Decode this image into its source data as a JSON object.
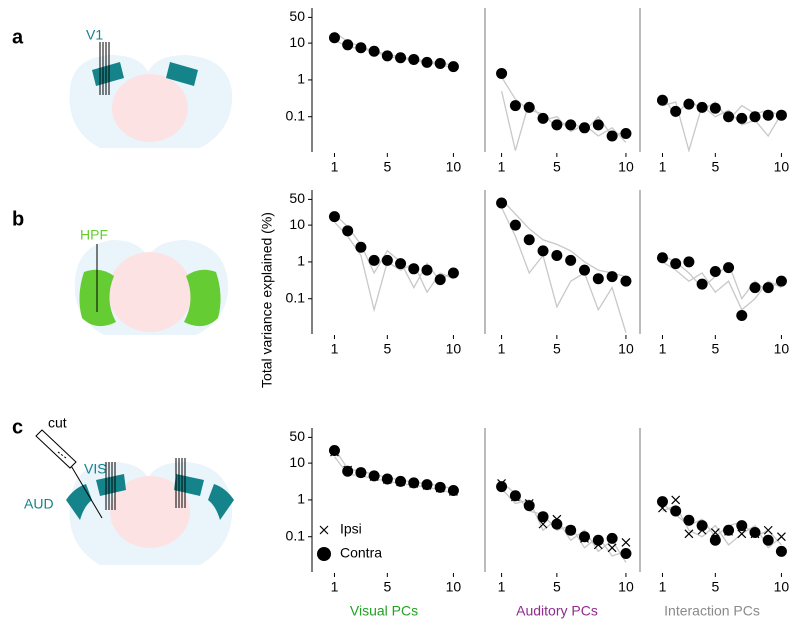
{
  "figure": {
    "panel_labels": [
      "a",
      "b",
      "c"
    ],
    "region_labels": [
      "V1",
      "HPF",
      "VIS",
      "AUD"
    ],
    "cut_label": "cut",
    "y_label": "Total variance explained (%)",
    "column_titles": [
      {
        "text": "Visual PCs",
        "color": "#22a022"
      },
      {
        "text": "Auditory PCs",
        "color": "#8e2b8e"
      },
      {
        "text": "Interaction PCs",
        "color": "#8a8a8a"
      }
    ]
  },
  "chart_data": [
    {
      "type": "scatter",
      "yscale": "log",
      "xlim": [
        -0.7,
        10.8
      ],
      "ylim": [
        0.011,
        90
      ],
      "xticks": [
        1,
        5,
        10
      ],
      "yticks": [
        0.1,
        1,
        10,
        50
      ],
      "x": [
        1,
        2,
        3,
        4,
        5,
        6,
        7,
        8,
        9,
        10
      ],
      "series": [
        {
          "style": "line",
          "color": "#c8c8c8",
          "values": [
            20,
            11,
            8,
            6,
            5,
            4.2,
            3.7,
            3.2,
            2.9,
            2.5
          ]
        },
        {
          "style": "line",
          "color": "#c8c8c8",
          "values": [
            12,
            8,
            7,
            6,
            4.3,
            3.9,
            3.4,
            2.9,
            2.6,
            2.1
          ]
        },
        {
          "style": "marker",
          "marker": "circle",
          "color": "#000000",
          "values": [
            14,
            9,
            7.5,
            6,
            4.5,
            4,
            3.6,
            3,
            2.8,
            2.3
          ]
        }
      ]
    },
    {
      "type": "scatter",
      "yscale": "log",
      "xlim": [
        -0.2,
        10.8
      ],
      "ylim": [
        0.011,
        90
      ],
      "xticks": [
        1,
        5,
        10
      ],
      "x": [
        1,
        2,
        3,
        4,
        5,
        6,
        7,
        8,
        9,
        10
      ],
      "series": [
        {
          "style": "line",
          "color": "#c8c8c8",
          "values": [
            1.2,
            0.3,
            0.15,
            0.12,
            0.05,
            0.08,
            0.04,
            0.1,
            0.03,
            0.04
          ]
        },
        {
          "style": "line",
          "color": "#c8c8c8",
          "values": [
            0.5,
            0.012,
            0.25,
            0.08,
            0.1,
            0.04,
            0.06,
            0.03,
            0.05,
            0.02
          ]
        },
        {
          "style": "marker",
          "marker": "circle",
          "color": "#000000",
          "values": [
            1.5,
            0.2,
            0.18,
            0.09,
            0.06,
            0.06,
            0.05,
            0.06,
            0.03,
            0.035
          ]
        }
      ]
    },
    {
      "type": "scatter",
      "yscale": "log",
      "xlim": [
        -0.7,
        10.8
      ],
      "ylim": [
        0.011,
        90
      ],
      "xticks": [
        1,
        5,
        10
      ],
      "x": [
        1,
        2,
        3,
        4,
        5,
        6,
        7,
        8,
        9,
        10
      ],
      "series": [
        {
          "style": "line",
          "color": "#c8c8c8",
          "values": [
            0.4,
            0.1,
            0.3,
            0.15,
            0.25,
            0.08,
            0.2,
            0.12,
            0.15,
            0.1
          ]
        },
        {
          "style": "line",
          "color": "#c8c8c8",
          "values": [
            0.2,
            0.25,
            0.012,
            0.2,
            0.1,
            0.15,
            0.06,
            0.08,
            0.03,
            0.12
          ]
        },
        {
          "style": "marker",
          "marker": "circle",
          "color": "#000000",
          "values": [
            0.28,
            0.14,
            0.22,
            0.18,
            0.17,
            0.1,
            0.09,
            0.1,
            0.11,
            0.11
          ]
        }
      ]
    },
    {
      "type": "scatter",
      "yscale": "log",
      "xlim": [
        -0.7,
        10.8
      ],
      "ylim": [
        0.011,
        90
      ],
      "xticks": [
        1,
        5,
        10
      ],
      "yticks": [
        0.1,
        1,
        10,
        50
      ],
      "x": [
        1,
        2,
        3,
        4,
        5,
        6,
        7,
        8,
        9,
        10
      ],
      "series": [
        {
          "style": "line",
          "color": "#c8c8c8",
          "values": [
            20,
            9,
            3,
            0.5,
            2,
            1,
            0.2,
            0.9,
            0.3,
            0.6
          ]
        },
        {
          "style": "line",
          "color": "#c8c8c8",
          "values": [
            12,
            5,
            1.5,
            0.05,
            1,
            0.6,
            0.9,
            0.15,
            0.5,
            0.35
          ]
        },
        {
          "style": "marker",
          "marker": "circle",
          "color": "#000000",
          "values": [
            17,
            7,
            2.5,
            1.1,
            1.1,
            0.9,
            0.65,
            0.6,
            0.33,
            0.5
          ]
        }
      ]
    },
    {
      "type": "scatter",
      "yscale": "log",
      "xlim": [
        -0.2,
        10.8
      ],
      "ylim": [
        0.011,
        90
      ],
      "xticks": [
        1,
        5,
        10
      ],
      "x": [
        1,
        2,
        3,
        4,
        5,
        6,
        7,
        8,
        9,
        10
      ],
      "series": [
        {
          "style": "line",
          "color": "#c8c8c8",
          "values": [
            50,
            20,
            8,
            4,
            3,
            2,
            1,
            0.6,
            0.5,
            0.4
          ]
        },
        {
          "style": "line",
          "color": "#c8c8c8",
          "values": [
            30,
            5,
            0.5,
            1.5,
            0.06,
            0.3,
            0.5,
            0.05,
            0.2,
            0.012
          ]
        },
        {
          "style": "marker",
          "marker": "circle",
          "color": "#000000",
          "values": [
            40,
            10,
            4,
            2,
            1.5,
            1.1,
            0.6,
            0.35,
            0.4,
            0.3
          ]
        }
      ]
    },
    {
      "type": "scatter",
      "yscale": "log",
      "xlim": [
        -0.7,
        10.8
      ],
      "ylim": [
        0.011,
        90
      ],
      "xticks": [
        1,
        5,
        10
      ],
      "x": [
        1,
        2,
        3,
        4,
        5,
        6,
        7,
        8,
        9,
        10
      ],
      "series": [
        {
          "style": "line",
          "color": "#c8c8c8",
          "values": [
            1.5,
            1,
            0.5,
            0.2,
            0.4,
            0.9,
            0.1,
            0.3,
            0.15,
            0.4
          ]
        },
        {
          "style": "line",
          "color": "#c8c8c8",
          "values": [
            1,
            0.6,
            0.3,
            0.5,
            0.15,
            0.3,
            0.05,
            0.1,
            0.3,
            0.2
          ]
        },
        {
          "style": "marker",
          "marker": "circle",
          "color": "#000000",
          "values": [
            1.3,
            0.9,
            1,
            0.25,
            0.55,
            0.7,
            0.035,
            0.2,
            0.2,
            0.3
          ]
        }
      ]
    },
    {
      "type": "scatter",
      "yscale": "log",
      "xlim": [
        -0.7,
        10.8
      ],
      "ylim": [
        0.011,
        90
      ],
      "xticks": [
        1,
        5,
        10
      ],
      "yticks": [
        0.1,
        1,
        10,
        50
      ],
      "legend": "lower left",
      "x": [
        1,
        2,
        3,
        4,
        5,
        6,
        7,
        8,
        9,
        10
      ],
      "series": [
        {
          "style": "line",
          "color": "#c8c8c8",
          "values": [
            25,
            7,
            6,
            5,
            4,
            3.5,
            3,
            2.8,
            2.4,
            2
          ]
        },
        {
          "style": "line",
          "color": "#c8c8c8",
          "values": [
            15,
            5,
            4.5,
            3.8,
            3.2,
            2.8,
            2.5,
            2.2,
            1.9,
            1.5
          ]
        },
        {
          "name": "Ipsi",
          "style": "marker",
          "marker": "x",
          "color": "#000000",
          "values": [
            20,
            6.5,
            5.5,
            4.3,
            3.6,
            3.1,
            2.8,
            2.5,
            2.1,
            1.7
          ]
        },
        {
          "name": "Contra",
          "style": "marker",
          "marker": "circle",
          "color": "#000000",
          "values": [
            22,
            6,
            5.5,
            4.5,
            3.7,
            3.2,
            2.9,
            2.6,
            2.2,
            1.8
          ]
        }
      ]
    },
    {
      "type": "scatter",
      "yscale": "log",
      "xlim": [
        -0.2,
        10.8
      ],
      "ylim": [
        0.011,
        90
      ],
      "xticks": [
        1,
        5,
        10
      ],
      "x": [
        1,
        2,
        3,
        4,
        5,
        6,
        7,
        8,
        9,
        10
      ],
      "series": [
        {
          "style": "line",
          "color": "#c8c8c8",
          "values": [
            3,
            1.5,
            0.5,
            0.4,
            0.15,
            0.2,
            0.05,
            0.1,
            0.03,
            0.04
          ]
        },
        {
          "style": "line",
          "color": "#c8c8c8",
          "values": [
            2,
            0.8,
            1,
            0.15,
            0.3,
            0.08,
            0.15,
            0.04,
            0.08,
            0.02
          ]
        },
        {
          "style": "marker",
          "marker": "x",
          "color": "#000000",
          "values": [
            2.8,
            1.2,
            0.8,
            0.22,
            0.3,
            0.15,
            0.09,
            0.06,
            0.05,
            0.07
          ]
        },
        {
          "style": "marker",
          "marker": "circle",
          "color": "#000000",
          "values": [
            2.3,
            1.3,
            0.7,
            0.35,
            0.22,
            0.15,
            0.1,
            0.08,
            0.09,
            0.035
          ]
        }
      ]
    },
    {
      "type": "scatter",
      "yscale": "log",
      "xlim": [
        -0.7,
        10.8
      ],
      "ylim": [
        0.011,
        90
      ],
      "xticks": [
        1,
        5,
        10
      ],
      "x": [
        1,
        2,
        3,
        4,
        5,
        6,
        7,
        8,
        9,
        10
      ],
      "series": [
        {
          "style": "line",
          "color": "#c8c8c8",
          "values": [
            0.8,
            0.4,
            0.2,
            0.3,
            0.1,
            0.2,
            0.25,
            0.1,
            0.15,
            0.06
          ]
        },
        {
          "style": "line",
          "color": "#c8c8c8",
          "values": [
            0.5,
            0.7,
            0.15,
            0.1,
            0.2,
            0.06,
            0.12,
            0.2,
            0.05,
            0.1
          ]
        },
        {
          "style": "marker",
          "marker": "x",
          "color": "#000000",
          "values": [
            0.6,
            1,
            0.12,
            0.15,
            0.13,
            0.14,
            0.12,
            0.12,
            0.15,
            0.1
          ]
        },
        {
          "style": "marker",
          "marker": "circle",
          "color": "#000000",
          "values": [
            0.9,
            0.5,
            0.28,
            0.2,
            0.08,
            0.15,
            0.2,
            0.13,
            0.08,
            0.04
          ]
        }
      ]
    }
  ]
}
